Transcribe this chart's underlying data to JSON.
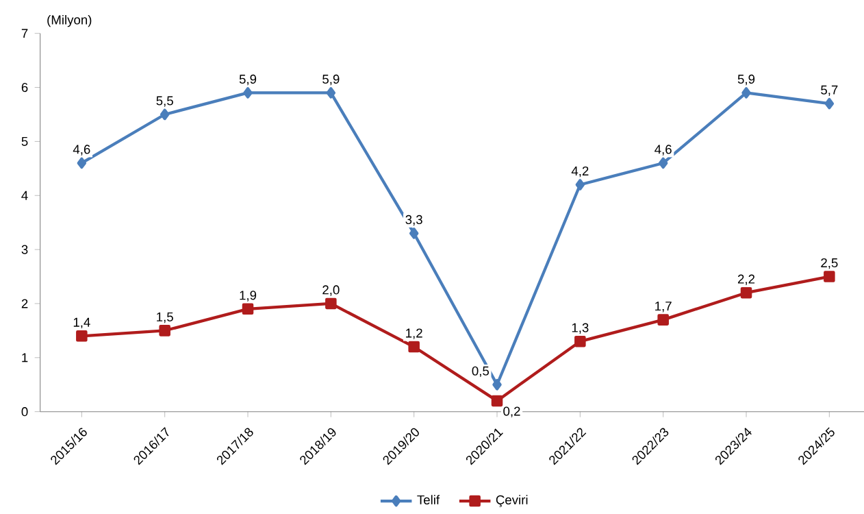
{
  "chart_data": {
    "type": "line",
    "ylabel": "(Milyon)",
    "categories": [
      "2015/16",
      "2016/17",
      "2017/18",
      "2018/19",
      "2019/20",
      "2020/21",
      "2021/22",
      "2022/23",
      "2023/24",
      "2024/25"
    ],
    "series": [
      {
        "name": "Telif",
        "color": "#4a7ebb",
        "marker": "diamond",
        "values": [
          4.6,
          5.5,
          5.9,
          5.9,
          3.3,
          0.5,
          4.2,
          4.6,
          5.9,
          5.7
        ],
        "value_labels": [
          "4,6",
          "5,5",
          "5,9",
          "5,9",
          "3,3",
          "0,5",
          "4,2",
          "4,6",
          "5,9",
          "5,7"
        ]
      },
      {
        "name": "Çeviri",
        "color": "#b01c1c",
        "marker": "square",
        "values": [
          1.4,
          1.5,
          1.9,
          2.0,
          1.2,
          0.2,
          1.3,
          1.7,
          2.2,
          2.5
        ],
        "value_labels": [
          "1,4",
          "1,5",
          "1,9",
          "2,0",
          "1,2",
          "0,2",
          "1,3",
          "1,7",
          "2,2",
          "2,5"
        ]
      }
    ],
    "ylim": [
      0,
      7
    ],
    "yticks": [
      0,
      1,
      2,
      3,
      4,
      5,
      6,
      7
    ],
    "grid": false,
    "legend": "bottom",
    "line_style": "solid"
  }
}
